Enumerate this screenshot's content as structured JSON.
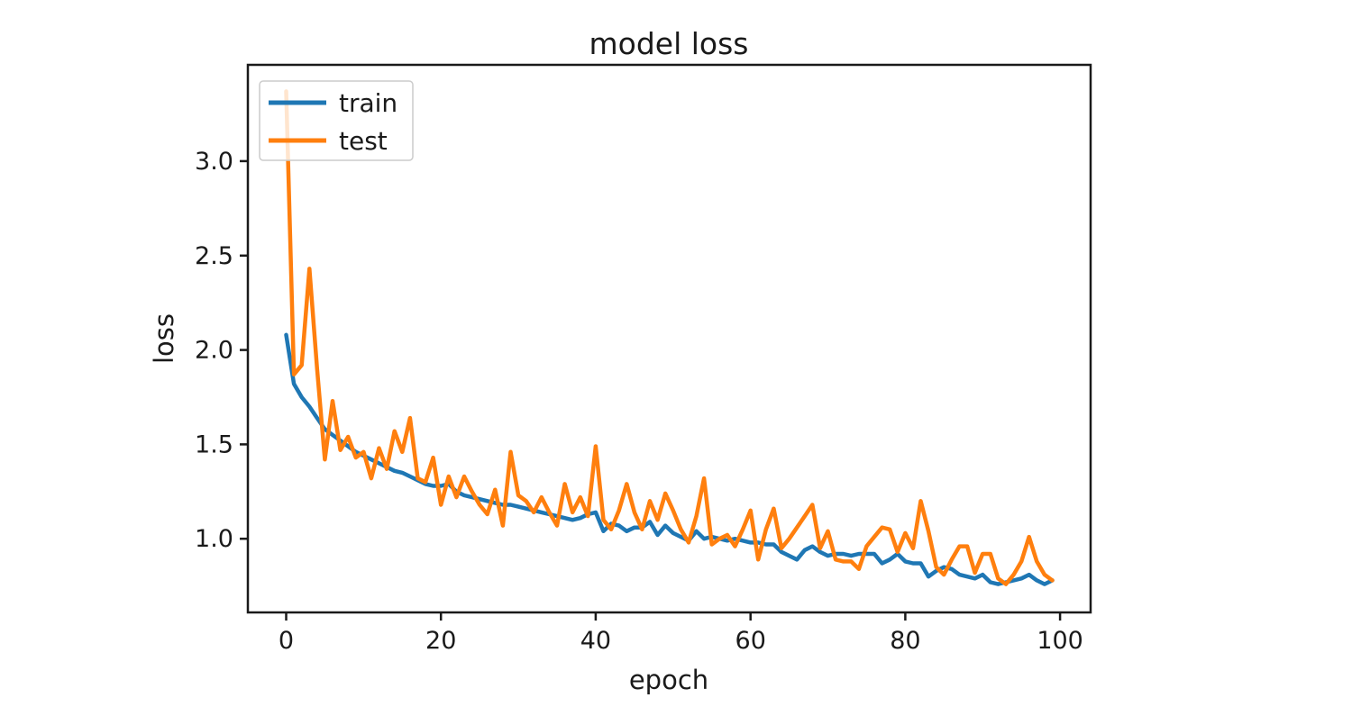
{
  "chart_data": {
    "type": "line",
    "title": "model loss",
    "xlabel": "epoch",
    "ylabel": "loss",
    "grid": false,
    "legend_position": "upper left",
    "xlim": [
      -4.95,
      103.95
    ],
    "ylim": [
      0.61,
      3.51
    ],
    "x_ticks": [
      0,
      20,
      40,
      60,
      80,
      100
    ],
    "x_tick_labels": [
      "0",
      "20",
      "40",
      "60",
      "80",
      "100"
    ],
    "y_ticks": [
      1.0,
      1.5,
      2.0,
      2.5,
      3.0
    ],
    "y_tick_labels": [
      "1.0",
      "1.5",
      "2.0",
      "2.5",
      "3.0"
    ],
    "x": [
      0,
      1,
      2,
      3,
      4,
      5,
      6,
      7,
      8,
      9,
      10,
      11,
      12,
      13,
      14,
      15,
      16,
      17,
      18,
      19,
      20,
      21,
      22,
      23,
      24,
      25,
      26,
      27,
      28,
      29,
      30,
      31,
      32,
      33,
      34,
      35,
      36,
      37,
      38,
      39,
      40,
      41,
      42,
      43,
      44,
      45,
      46,
      47,
      48,
      49,
      50,
      51,
      52,
      53,
      54,
      55,
      56,
      57,
      58,
      59,
      60,
      61,
      62,
      63,
      64,
      65,
      66,
      67,
      68,
      69,
      70,
      71,
      72,
      73,
      74,
      75,
      76,
      77,
      78,
      79,
      80,
      81,
      82,
      83,
      84,
      85,
      86,
      87,
      88,
      89,
      90,
      91,
      92,
      93,
      94,
      95,
      96,
      97,
      98,
      99
    ],
    "series": [
      {
        "name": "train",
        "color": "#1f77b4",
        "values": [
          2.08,
          1.82,
          1.75,
          1.7,
          1.64,
          1.58,
          1.55,
          1.52,
          1.49,
          1.46,
          1.44,
          1.42,
          1.4,
          1.38,
          1.36,
          1.35,
          1.33,
          1.31,
          1.29,
          1.28,
          1.28,
          1.29,
          1.25,
          1.23,
          1.22,
          1.21,
          1.2,
          1.19,
          1.18,
          1.18,
          1.17,
          1.16,
          1.15,
          1.14,
          1.13,
          1.12,
          1.11,
          1.1,
          1.11,
          1.13,
          1.14,
          1.04,
          1.08,
          1.07,
          1.04,
          1.06,
          1.06,
          1.09,
          1.02,
          1.07,
          1.03,
          1.01,
          0.99,
          1.04,
          1.0,
          1.01,
          1.0,
          0.99,
          1.0,
          0.99,
          0.98,
          0.98,
          0.97,
          0.97,
          0.93,
          0.91,
          0.89,
          0.94,
          0.96,
          0.93,
          0.91,
          0.92,
          0.92,
          0.91,
          0.92,
          0.92,
          0.92,
          0.87,
          0.89,
          0.92,
          0.88,
          0.87,
          0.87,
          0.8,
          0.83,
          0.85,
          0.84,
          0.81,
          0.8,
          0.79,
          0.81,
          0.77,
          0.76,
          0.77,
          0.78,
          0.79,
          0.81,
          0.78,
          0.76,
          0.78
        ]
      },
      {
        "name": "test",
        "color": "#ff7f0e",
        "values": [
          3.37,
          1.87,
          1.92,
          2.43,
          1.9,
          1.42,
          1.73,
          1.47,
          1.54,
          1.43,
          1.46,
          1.32,
          1.48,
          1.37,
          1.57,
          1.46,
          1.64,
          1.32,
          1.3,
          1.43,
          1.18,
          1.33,
          1.22,
          1.33,
          1.25,
          1.18,
          1.13,
          1.26,
          1.07,
          1.46,
          1.23,
          1.2,
          1.14,
          1.22,
          1.14,
          1.07,
          1.29,
          1.14,
          1.22,
          1.12,
          1.49,
          1.1,
          1.05,
          1.15,
          1.29,
          1.14,
          1.05,
          1.2,
          1.1,
          1.24,
          1.15,
          1.05,
          0.98,
          1.12,
          1.32,
          0.97,
          1.0,
          1.02,
          0.96,
          1.05,
          1.15,
          0.89,
          1.05,
          1.16,
          0.95,
          1.0,
          1.06,
          1.12,
          1.18,
          0.95,
          1.04,
          0.89,
          0.88,
          0.88,
          0.84,
          0.96,
          1.01,
          1.06,
          1.05,
          0.93,
          1.03,
          0.95,
          1.2,
          1.04,
          0.85,
          0.81,
          0.89,
          0.96,
          0.96,
          0.82,
          0.92,
          0.92,
          0.79,
          0.76,
          0.81,
          0.88,
          1.01,
          0.88,
          0.81,
          0.78
        ]
      }
    ],
    "legend": [
      {
        "label": "train"
      },
      {
        "label": "test"
      }
    ]
  }
}
